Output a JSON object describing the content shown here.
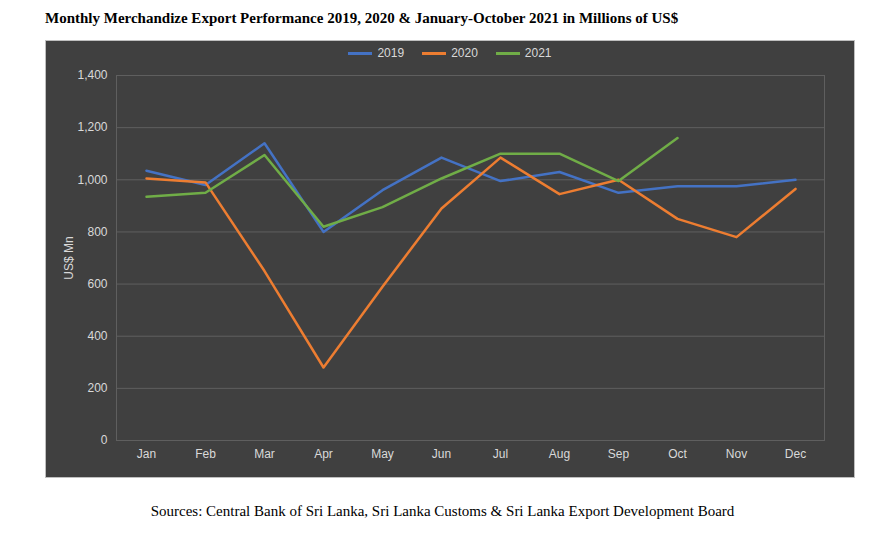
{
  "chart_data": {
    "type": "line",
    "title": "Monthly Merchandize Export Performance 2019, 2020 & January-October 2021 in Millions of US$",
    "y_label": "US$ Mn",
    "source": "Sources: Central Bank of Sri Lanka, Sri Lanka Customs & Sri Lanka Export Development Board",
    "categories": [
      "Jan",
      "Feb",
      "Mar",
      "Apr",
      "May",
      "Jun",
      "Jul",
      "Aug",
      "Sep",
      "Oct",
      "Nov",
      "Dec"
    ],
    "series": [
      {
        "name": "2019",
        "color": "#4472c4",
        "values": [
          1035,
          980,
          1140,
          800,
          960,
          1085,
          995,
          1030,
          950,
          975,
          975,
          1000
        ]
      },
      {
        "name": "2020",
        "color": "#ed7d31",
        "values": [
          1005,
          990,
          650,
          280,
          590,
          890,
          1085,
          945,
          1000,
          850,
          780,
          965
        ]
      },
      {
        "name": "2021",
        "color": "#70ad47",
        "values": [
          935,
          950,
          1095,
          820,
          895,
          1005,
          1100,
          1100,
          995,
          1160,
          null,
          null
        ]
      }
    ],
    "ylim": [
      0,
      1400
    ],
    "yticks": [
      0,
      200,
      400,
      600,
      800,
      {
        "value": 1000,
        "label": "1,000"
      },
      {
        "value": 1200,
        "label": "1,200"
      },
      {
        "value": 1400,
        "label": "1,400"
      }
    ],
    "grid": true,
    "legend": "top"
  }
}
